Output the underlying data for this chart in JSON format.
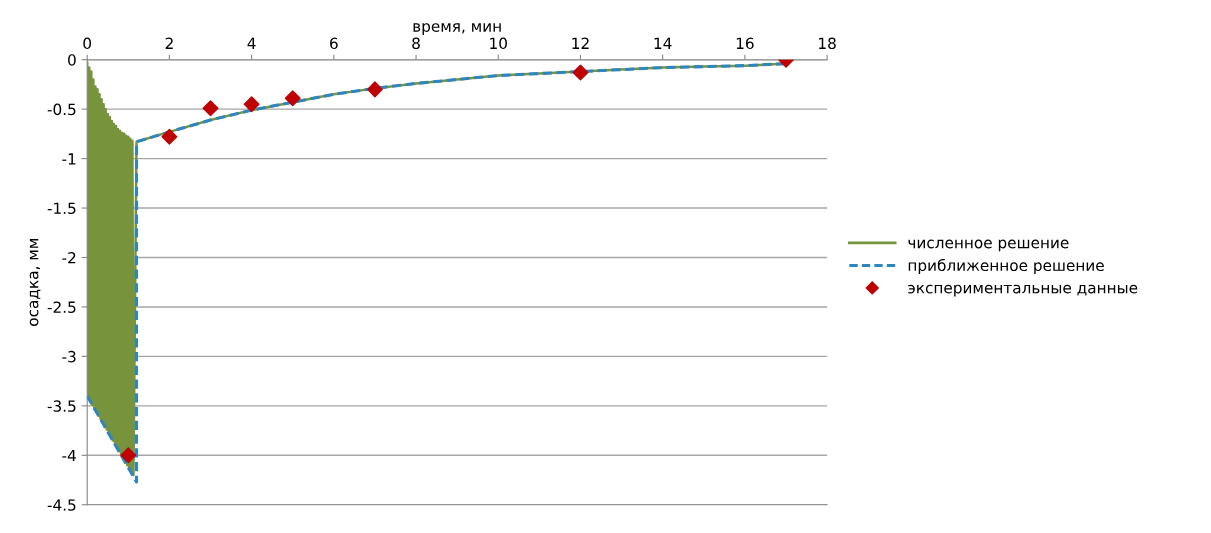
{
  "chart_data": {
    "type": "line",
    "xlabel": "время, мин",
    "ylabel": "осадка, мм",
    "xlim": [
      0,
      18
    ],
    "xticks": [
      0,
      2,
      4,
      6,
      8,
      10,
      12,
      14,
      16,
      18
    ],
    "ylim": [
      -4.5,
      0
    ],
    "yticks": [
      -4.5,
      -4,
      -3.5,
      -3,
      -2.5,
      -2,
      -1.5,
      -1,
      -0.5,
      0
    ],
    "grid": "y",
    "legend": "right",
    "series": [
      {
        "name": "численное решение",
        "color": "#77933c",
        "line_style": "solid",
        "marker": "none",
        "x": [
          0,
          0.025,
          0.05,
          0.075,
          0.1,
          0.125,
          0.15,
          0.175,
          0.2,
          0.225,
          0.25,
          0.275,
          0.3,
          0.325,
          0.35,
          0.375,
          0.4,
          0.425,
          0.45,
          0.475,
          0.5,
          0.525,
          0.55,
          0.575,
          0.6,
          0.625,
          0.65,
          0.675,
          0.7,
          0.725,
          0.75,
          0.775,
          0.8,
          0.825,
          0.85,
          0.875,
          0.9,
          0.925,
          0.95,
          0.975,
          1.0,
          1.025,
          1.05,
          1.075,
          1.1,
          1.125,
          1.2,
          2,
          3,
          4,
          5,
          6,
          7,
          8,
          9,
          10,
          11,
          12,
          13,
          14,
          15,
          16,
          17
        ],
        "values": [
          -0.03,
          -3.42,
          -0.08,
          -3.45,
          -0.12,
          -3.49,
          -0.2,
          -3.53,
          -0.27,
          -3.56,
          -0.3,
          -3.6,
          -0.35,
          -3.63,
          -0.4,
          -3.67,
          -0.45,
          -3.71,
          -0.5,
          -3.74,
          -0.55,
          -3.78,
          -0.58,
          -3.81,
          -0.62,
          -3.85,
          -0.65,
          -3.89,
          -0.67,
          -3.92,
          -0.7,
          -3.96,
          -0.72,
          -3.99,
          -0.74,
          -4.03,
          -0.75,
          -4.07,
          -0.77,
          -4.1,
          -0.78,
          -4.14,
          -0.8,
          -4.17,
          -0.82,
          -4.2,
          -0.83,
          -0.73,
          -0.61,
          -0.51,
          -0.43,
          -0.35,
          -0.29,
          -0.24,
          -0.2,
          -0.16,
          -0.14,
          -0.12,
          -0.1,
          -0.08,
          -0.07,
          -0.06,
          -0.04
        ]
      },
      {
        "name": "приближенное решение",
        "color": "#2e86c1",
        "line_style": "dashed",
        "marker": "none",
        "x": [
          0,
          1.2,
          1.2,
          2,
          3,
          4,
          5,
          6,
          7,
          8,
          9,
          10,
          11,
          12,
          13,
          14,
          15,
          16,
          17
        ],
        "values": [
          -3.4,
          -4.27,
          -0.83,
          -0.73,
          -0.61,
          -0.51,
          -0.43,
          -0.35,
          -0.29,
          -0.24,
          -0.2,
          -0.16,
          -0.14,
          -0.12,
          -0.1,
          -0.08,
          -0.07,
          -0.06,
          -0.04
        ]
      },
      {
        "name": "экспериментальные данные",
        "type": "scatter",
        "color": "#c00000",
        "marker": "diamond",
        "x": [
          1,
          2,
          3,
          4,
          5,
          7,
          12,
          17
        ],
        "values": [
          -4,
          -0.78,
          -0.49,
          -0.45,
          -0.39,
          -0.3,
          -0.13,
          0
        ]
      }
    ]
  }
}
